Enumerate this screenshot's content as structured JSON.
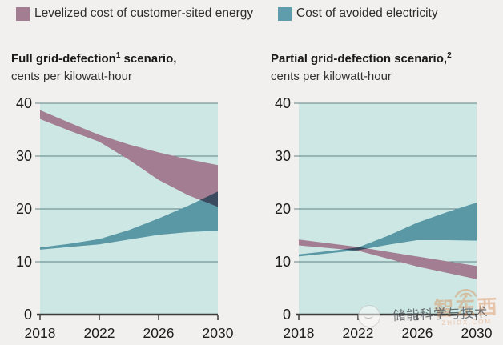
{
  "page": {
    "background": "#f1f0ee"
  },
  "legend": {
    "items": [
      {
        "label": "Levelized cost of customer-sited energy",
        "color": "#a37e92"
      },
      {
        "label": "Cost of avoided electricity",
        "color": "#5f9dac"
      }
    ]
  },
  "charts": [
    {
      "title_pre": "Full grid-defection",
      "title_sup": "1",
      "title_post": " scenario,",
      "subtitle": "cents per kilowatt-hour"
    },
    {
      "title_pre": "Partial grid-defection scenario,",
      "title_sup": "2",
      "title_post": "",
      "subtitle": "cents per kilowatt-hour"
    }
  ],
  "style": {
    "plot_bg": "#cde8e4",
    "grid_color": "#4f6f74",
    "axis_color": "#3b3b3b",
    "tick_text_color": "#1c1c1c",
    "mauve": "#a37e92",
    "teal": "#5b98a6"
  },
  "chart_data": [
    {
      "type": "area",
      "title": "Full grid-defection scenario",
      "subtitle": "cents per kilowatt-hour",
      "x": [
        2018,
        2020,
        2022,
        2024,
        2026,
        2028,
        2030
      ],
      "xticks": [
        2018,
        2022,
        2026,
        2030
      ],
      "ylim": [
        0,
        40
      ],
      "yticks": [
        0,
        10,
        20,
        30,
        40
      ],
      "grid": true,
      "series": [
        {
          "name": "Levelized cost of customer-sited energy",
          "color": "#a37e92",
          "upper": [
            38.7,
            36.3,
            34.0,
            32.2,
            30.7,
            29.4,
            28.3
          ],
          "lower": [
            37.0,
            34.8,
            32.7,
            29.3,
            25.5,
            22.6,
            20.4
          ]
        },
        {
          "name": "Cost of avoided electricity",
          "color": "#5b98a6",
          "upper": [
            12.7,
            13.4,
            14.3,
            16.0,
            18.2,
            20.6,
            23.3
          ],
          "lower": [
            12.3,
            12.8,
            13.3,
            14.2,
            15.1,
            15.6,
            15.9
          ]
        }
      ]
    },
    {
      "type": "area",
      "title": "Partial grid-defection scenario",
      "subtitle": "cents per kilowatt-hour",
      "x": [
        2018,
        2020,
        2022,
        2024,
        2026,
        2028,
        2030
      ],
      "xticks": [
        2018,
        2022,
        2026,
        2030
      ],
      "ylim": [
        0,
        40
      ],
      "yticks": [
        0,
        10,
        20,
        30,
        40
      ],
      "grid": true,
      "series": [
        {
          "name": "Levelized cost of customer-sited energy",
          "color": "#a37e92",
          "upper": [
            14.2,
            13.5,
            12.8,
            11.9,
            11.0,
            10.1,
            9.2
          ],
          "lower": [
            13.1,
            12.6,
            12.1,
            10.6,
            9.1,
            7.9,
            6.7
          ]
        },
        {
          "name": "Cost of avoided electricity",
          "color": "#5b98a6",
          "upper": [
            11.4,
            12.0,
            12.7,
            14.9,
            17.4,
            19.4,
            21.2
          ],
          "lower": [
            11.0,
            11.6,
            12.2,
            13.2,
            14.1,
            14.1,
            14.0
          ]
        }
      ]
    }
  ],
  "watermark": {
    "account": "储能科学与技术",
    "logo_main": "智东西",
    "logo_sub": "ZHIDX.COM"
  }
}
